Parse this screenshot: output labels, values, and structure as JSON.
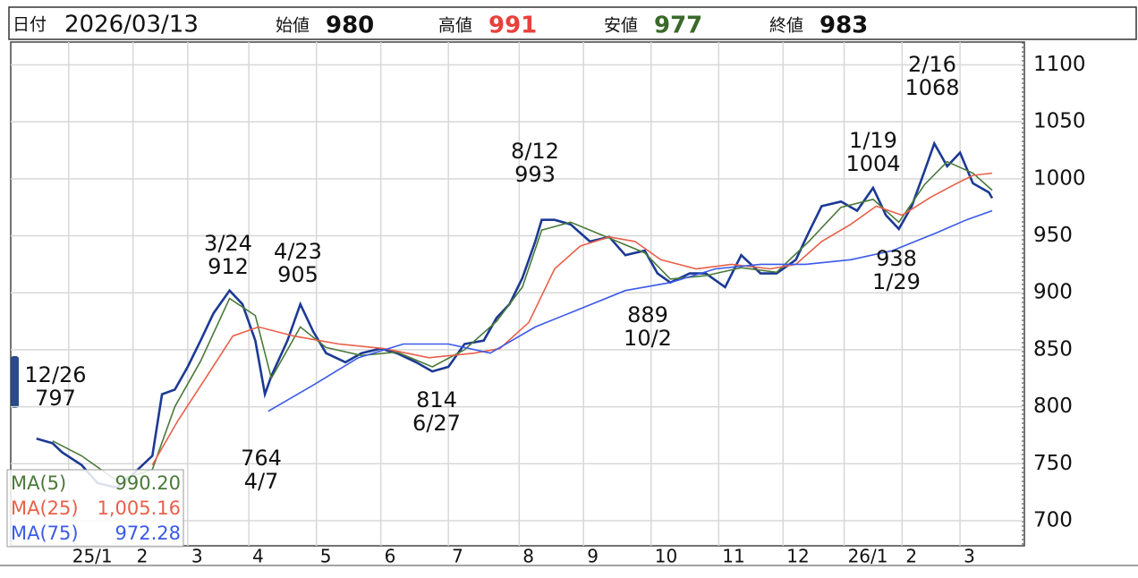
{
  "header": {
    "date_label": "日付",
    "date": "2026/03/13",
    "open_label": "始値",
    "open": 980,
    "high_label": "高値",
    "high": 991,
    "low_label": "安値",
    "low": 977,
    "close_label": "終値",
    "close": 983
  },
  "chart_data": {
    "type": "line",
    "xlim": [
      0,
      315
    ],
    "xticks": [
      {
        "value": 18,
        "label": "25/1"
      },
      {
        "value": 38,
        "label": "2"
      },
      {
        "value": 55,
        "label": "3"
      },
      {
        "value": 74,
        "label": "4"
      },
      {
        "value": 95,
        "label": "5"
      },
      {
        "value": 115,
        "label": "6"
      },
      {
        "value": 136,
        "label": "7"
      },
      {
        "value": 158,
        "label": "8"
      },
      {
        "value": 178,
        "label": "9"
      },
      {
        "value": 199,
        "label": "10"
      },
      {
        "value": 220,
        "label": "11"
      },
      {
        "value": 240,
        "label": "12"
      },
      {
        "value": 259,
        "label": "26/1"
      },
      {
        "value": 277,
        "label": "2"
      },
      {
        "value": 295,
        "label": "3"
      }
    ],
    "ylim": [
      678,
      1120
    ],
    "yticks": [
      700,
      750,
      800,
      850,
      900,
      950,
      1000,
      1050,
      1100
    ],
    "grid": true,
    "series": [
      {
        "color": "#1c3a94",
        "x": [
          8,
          13,
          16,
          22,
          27,
          33,
          38,
          44,
          47,
          51,
          55,
          59,
          63,
          68,
          72,
          76,
          79,
          81,
          86,
          90,
          94,
          98,
          104,
          109,
          115,
          120,
          126,
          131,
          136,
          141,
          147,
          151,
          155,
          159,
          163,
          165,
          169,
          174,
          180,
          186,
          191,
          197,
          201,
          205,
          211,
          216,
          222,
          227,
          233,
          238,
          244,
          248,
          252,
          258,
          263,
          268,
          272,
          276,
          280,
          284,
          287,
          291,
          295,
          299,
          304,
          305
        ],
        "values": [
          772,
          768,
          760,
          749,
          733,
          729,
          741,
          757,
          811,
          815,
          835,
          858,
          882,
          902,
          890,
          858,
          811,
          827,
          858,
          890,
          866,
          847,
          839,
          847,
          851,
          847,
          839,
          831,
          835,
          855,
          858,
          878,
          890,
          913,
          945,
          964,
          964,
          960,
          945,
          949,
          933,
          937,
          917,
          909,
          917,
          917,
          905,
          933,
          917,
          917,
          929,
          953,
          976,
          980,
          972,
          992,
          968,
          956,
          976,
          1007,
          1031,
          1011,
          1023,
          996,
          988,
          983
        ]
      },
      {
        "name": "MA(5)",
        "color": "#4a7a3a",
        "latest": {
          "value": 990.2,
          "label": "990.20"
        },
        "x": [
          13,
          22,
          33,
          44,
          51,
          59,
          68,
          76,
          81,
          90,
          98,
          109,
          120,
          131,
          141,
          151,
          159,
          165,
          174,
          186,
          197,
          205,
          216,
          227,
          238,
          248,
          258,
          268,
          276,
          284,
          291,
          299,
          305
        ],
        "values": [
          770,
          757,
          735,
          745,
          800,
          840,
          895,
          880,
          825,
          870,
          852,
          845,
          848,
          835,
          850,
          875,
          905,
          955,
          962,
          948,
          935,
          912,
          915,
          922,
          918,
          945,
          975,
          982,
          962,
          995,
          1015,
          1005,
          990
        ]
      },
      {
        "name": "MA(25)",
        "color": "#e8604a",
        "latest": {
          "value": 1005.16,
          "label": "1,005.16"
        },
        "x": [
          44,
          52,
          61,
          69,
          77,
          88,
          102,
          116,
          130,
          144,
          152,
          161,
          169,
          177,
          186,
          194,
          202,
          213,
          224,
          236,
          244,
          252,
          261,
          269,
          277,
          286,
          294,
          299,
          305
        ],
        "values": [
          749,
          788,
          827,
          862,
          870,
          862,
          855,
          851,
          843,
          847,
          851,
          874,
          921,
          941,
          949,
          945,
          929,
          921,
          925,
          921,
          925,
          945,
          960,
          976,
          968,
          984,
          996,
          1003,
          1005
        ]
      },
      {
        "name": "MA(75)",
        "color": "#3a5ae8",
        "latest": {
          "value": 972.28,
          "label": "972.28"
        },
        "x": [
          80,
          94,
          108,
          122,
          136,
          149,
          163,
          177,
          191,
          205,
          219,
          233,
          247,
          261,
          274,
          288,
          297,
          305
        ],
        "values": [
          796,
          819,
          843,
          855,
          855,
          847,
          870,
          886,
          902,
          909,
          921,
          925,
          925,
          929,
          937,
          953,
          964,
          972
        ]
      }
    ],
    "annotations": [
      {
        "date": "12/26",
        "value": 797
      },
      {
        "date": "3/24",
        "value": 912
      },
      {
        "date": "4/23",
        "value": 905
      },
      {
        "date": "4/7",
        "value": 764
      },
      {
        "date": "6/27",
        "value": 814
      },
      {
        "date": "8/12",
        "value": 993
      },
      {
        "date": "10/2",
        "value": 889
      },
      {
        "date": "1/19",
        "value": 1004
      },
      {
        "date": "1/29",
        "value": 938
      },
      {
        "date": "2/16",
        "value": 1068
      }
    ]
  }
}
